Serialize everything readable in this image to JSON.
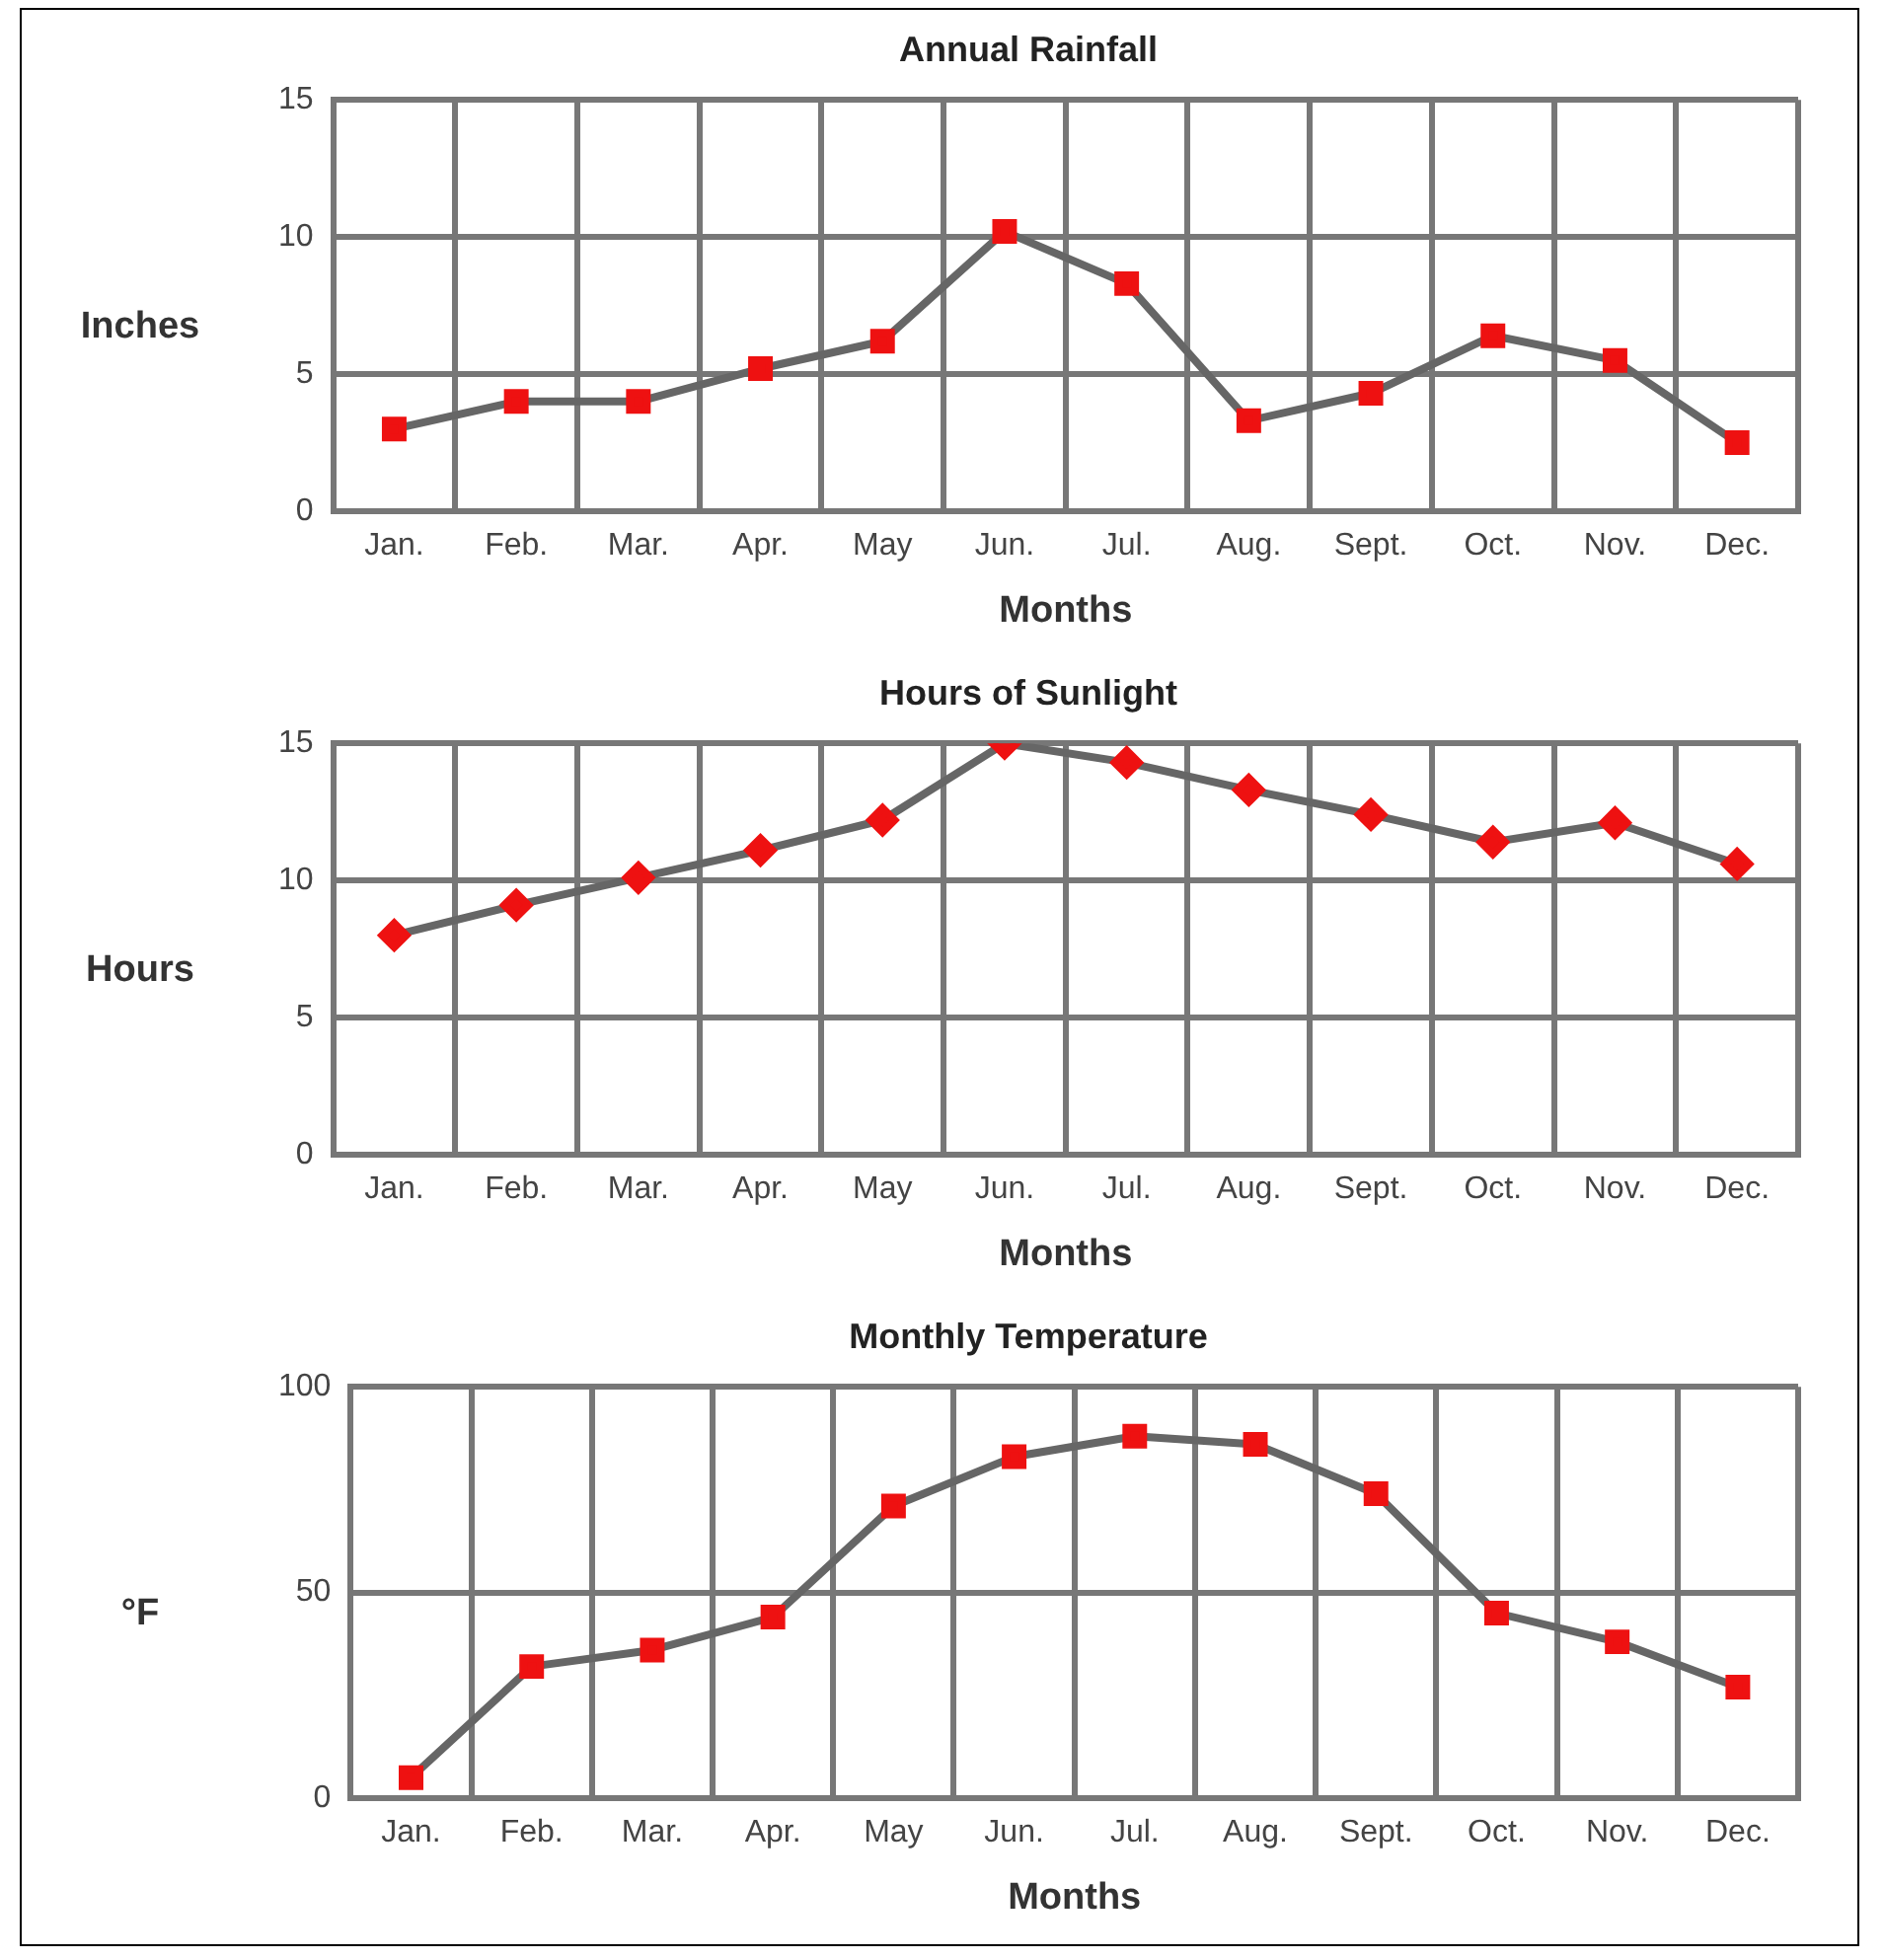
{
  "chart_data": [
    {
      "type": "line",
      "title": "Annual Rainfall",
      "xlabel": "Months",
      "ylabel": "Inches",
      "categories": [
        "Jan.",
        "Feb.",
        "Mar.",
        "Apr.",
        "May",
        "Jun.",
        "Jul.",
        "Aug.",
        "Sept.",
        "Oct.",
        "Nov.",
        "Dec."
      ],
      "series": [
        {
          "color": "#ee1111",
          "values": [
            3,
            4,
            4,
            5.2,
            6.2,
            10.2,
            8.3,
            3.3,
            4.3,
            6.4,
            5.5,
            2.5
          ]
        }
      ],
      "ylim": [
        0,
        15
      ],
      "yticks": [
        0,
        5,
        10,
        15
      ],
      "grid": true,
      "legend": false,
      "marker": "square",
      "line_style": "solid"
    },
    {
      "type": "line",
      "title": "Hours of Sunlight",
      "xlabel": "Months",
      "ylabel": "Hours",
      "categories": [
        "Jan.",
        "Feb.",
        "Mar.",
        "Apr.",
        "May",
        "Jun.",
        "Jul.",
        "Aug.",
        "Sept.",
        "Oct.",
        "Nov.",
        "Dec."
      ],
      "series": [
        {
          "color": "#ee1111",
          "values": [
            8,
            9.1,
            10.1,
            11.1,
            12.2,
            15,
            14.3,
            13.3,
            12.4,
            11.4,
            12.1,
            10.6
          ]
        }
      ],
      "ylim": [
        0,
        15
      ],
      "yticks": [
        0,
        5,
        10,
        15
      ],
      "grid": true,
      "legend": false,
      "marker": "diamond",
      "line_style": "solid"
    },
    {
      "type": "line",
      "title": "Monthly Temperature",
      "xlabel": "Months",
      "ylabel": "°F",
      "categories": [
        "Jan.",
        "Feb.",
        "Mar.",
        "Apr.",
        "May",
        "Jun.",
        "Jul.",
        "Aug.",
        "Sept.",
        "Oct.",
        "Nov.",
        "Dec."
      ],
      "series": [
        {
          "color": "#ee1111",
          "values": [
            5,
            32,
            36,
            44,
            71,
            83,
            88,
            86,
            74,
            45,
            38,
            27
          ]
        }
      ],
      "ylim": [
        0,
        100
      ],
      "yticks": [
        0,
        50,
        100
      ],
      "grid": true,
      "legend": false,
      "marker": "square",
      "line_style": "solid"
    }
  ]
}
